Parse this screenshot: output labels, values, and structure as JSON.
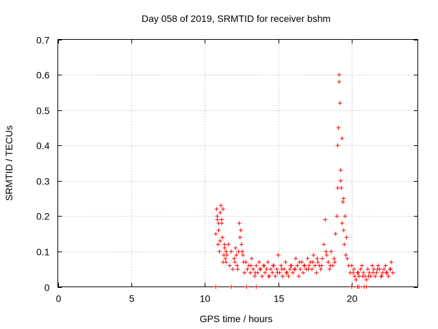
{
  "chart_data": {
    "type": "scatter",
    "title": "Day 058 of 2019, SRMTID for receiver bshm",
    "xlabel": "GPS time / hours",
    "ylabel": "SRMTID / TECUs",
    "xlim": [
      0,
      24.5
    ],
    "ylim": [
      0,
      0.7
    ],
    "xticks": [
      0,
      5,
      10,
      15,
      20
    ],
    "yticks": [
      0,
      0.1,
      0.2,
      0.3,
      0.4,
      0.5,
      0.6,
      0.7
    ],
    "ytick_labels": [
      "0",
      "0.1",
      "0.2",
      "0.3",
      "0.4",
      "0.5",
      "0.6",
      "0.7"
    ],
    "grid": true,
    "marker": "plus",
    "series": [
      {
        "color": "#ff0000",
        "x": [
          10.75,
          10.8,
          10.85,
          10.9,
          10.95,
          11.0,
          11.05,
          11.1,
          11.15,
          11.2,
          11.25,
          11.3,
          11.35,
          11.4,
          11.45,
          11.5,
          11.6,
          11.7,
          11.8,
          11.9,
          12.0,
          12.1,
          12.2,
          12.3,
          12.4,
          12.5,
          12.6,
          12.7,
          12.8,
          12.9,
          13.0,
          13.1,
          13.2,
          13.3,
          13.4,
          13.5,
          13.6,
          13.7,
          13.8,
          13.9,
          14.0,
          14.1,
          14.2,
          14.3,
          14.4,
          14.5,
          14.6,
          14.7,
          14.8,
          14.9,
          15.0,
          15.1,
          15.2,
          15.3,
          15.4,
          15.5,
          15.6,
          15.7,
          15.8,
          15.9,
          16.0,
          16.1,
          16.2,
          16.3,
          16.4,
          16.5,
          16.6,
          16.7,
          16.8,
          16.9,
          17.0,
          17.1,
          17.2,
          17.3,
          17.4,
          17.5,
          17.6,
          17.7,
          17.8,
          17.9,
          18.0,
          18.1,
          18.2,
          18.3,
          18.4,
          18.5,
          18.6,
          18.7,
          18.8,
          18.9,
          19.0,
          19.05,
          19.1,
          19.15,
          19.2,
          19.25,
          19.3,
          19.35,
          19.4,
          19.45,
          19.5,
          19.6,
          19.7,
          19.8,
          19.9,
          20.0,
          20.1,
          20.2,
          20.3,
          20.4,
          20.5,
          20.6,
          20.7,
          20.8,
          20.9,
          21.0,
          21.1,
          21.2,
          21.3,
          21.4,
          21.5,
          21.6,
          21.7,
          21.8,
          21.9,
          22.0,
          22.1,
          22.2,
          22.3,
          22.4,
          22.5,
          22.6,
          22.7,
          22.8,
          10.85,
          10.95,
          11.05,
          11.15,
          11.25,
          11.35,
          11.45,
          12.05,
          12.15,
          12.25,
          12.35,
          12.45,
          12.55,
          12.65,
          13.15,
          13.45,
          13.75,
          14.05,
          14.35,
          14.65,
          14.95,
          15.25,
          15.55,
          15.85,
          16.15,
          16.45,
          16.75,
          17.05,
          17.35,
          17.65,
          17.95,
          18.25,
          18.55,
          18.85,
          19.05,
          19.15,
          19.25,
          19.35,
          19.45,
          19.55,
          19.65,
          20.15,
          20.45,
          20.75,
          21.15,
          21.45,
          21.75,
          22.05,
          22.35,
          22.65,
          10.75,
          11.8,
          12.85,
          13.5,
          20.0,
          20.4,
          20.5,
          20.85,
          21.0
        ],
        "y": [
          0.15,
          0.22,
          0.19,
          0.12,
          0.16,
          0.1,
          0.21,
          0.23,
          0.18,
          0.14,
          0.22,
          0.09,
          0.11,
          0.08,
          0.07,
          0.09,
          0.12,
          0.06,
          0.1,
          0.05,
          0.08,
          0.11,
          0.06,
          0.1,
          0.14,
          0.12,
          0.09,
          0.04,
          0.07,
          0.05,
          0.06,
          0.04,
          0.08,
          0.05,
          0.03,
          0.06,
          0.04,
          0.07,
          0.05,
          0.03,
          0.06,
          0.04,
          0.05,
          0.07,
          0.03,
          0.05,
          0.04,
          0.06,
          0.03,
          0.05,
          0.09,
          0.04,
          0.06,
          0.03,
          0.05,
          0.07,
          0.04,
          0.03,
          0.05,
          0.06,
          0.04,
          0.05,
          0.08,
          0.06,
          0.03,
          0.05,
          0.07,
          0.04,
          0.06,
          0.05,
          0.08,
          0.06,
          0.07,
          0.05,
          0.09,
          0.06,
          0.04,
          0.07,
          0.06,
          0.05,
          0.08,
          0.12,
          0.19,
          0.09,
          0.07,
          0.05,
          0.1,
          0.06,
          0.08,
          0.15,
          0.2,
          0.4,
          0.45,
          0.6,
          0.52,
          0.33,
          0.28,
          0.18,
          0.24,
          0.16,
          0.12,
          0.09,
          0.08,
          0.06,
          0.04,
          0.06,
          0.04,
          0.03,
          0.02,
          0.04,
          0.03,
          0.05,
          0.06,
          0.04,
          0.03,
          0.02,
          0.05,
          0.04,
          0.03,
          0.06,
          0.05,
          0.03,
          0.04,
          0.06,
          0.05,
          0.03,
          0.04,
          0.05,
          0.06,
          0.04,
          0.03,
          0.05,
          0.07,
          0.04,
          0.2,
          0.18,
          0.13,
          0.19,
          0.07,
          0.12,
          0.1,
          0.07,
          0.09,
          0.05,
          0.18,
          0.16,
          0.1,
          0.07,
          0.06,
          0.04,
          0.05,
          0.06,
          0.03,
          0.06,
          0.04,
          0.05,
          0.04,
          0.06,
          0.05,
          0.07,
          0.06,
          0.05,
          0.07,
          0.08,
          0.06,
          0.1,
          0.06,
          0.07,
          0.28,
          0.58,
          0.3,
          0.42,
          0.25,
          0.2,
          0.14,
          0.05,
          0.04,
          0.03,
          0.03,
          0.04,
          0.05,
          0.03,
          0.04,
          0.05,
          0,
          0,
          0,
          0,
          0,
          0,
          0,
          0,
          0
        ]
      }
    ]
  }
}
